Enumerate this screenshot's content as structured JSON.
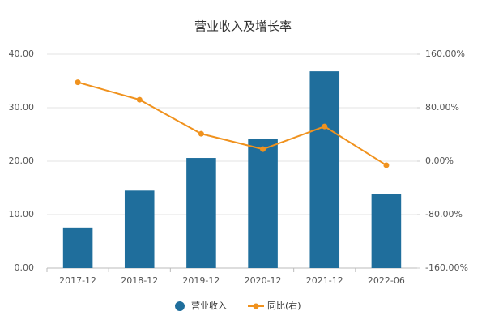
{
  "chart_data": {
    "type": "combo",
    "title": "营业收入及增长率",
    "categories": [
      "2017-12",
      "2018-12",
      "2019-12",
      "2020-12",
      "2021-12",
      "2022-06"
    ],
    "series": [
      {
        "name": "营业收入",
        "type": "bar",
        "color": "#1f6e9c",
        "values": [
          7.6,
          14.5,
          20.6,
          24.2,
          36.8,
          13.8
        ]
      },
      {
        "name": "同比(右)",
        "type": "line",
        "axis": "y2",
        "color": "#f0921e",
        "values": [
          118,
          92,
          41,
          18,
          52,
          -6
        ]
      }
    ],
    "ylim": [
      0,
      40
    ],
    "yticks": [
      {
        "value": 0,
        "label": "0.00"
      },
      {
        "value": 10,
        "label": "10.00"
      },
      {
        "value": 20,
        "label": "20.00"
      },
      {
        "value": 30,
        "label": "30.00"
      },
      {
        "value": 40,
        "label": "40.00"
      }
    ],
    "y2lim": [
      -160,
      160
    ],
    "y2ticks": [
      {
        "value": -160,
        "label": "-160.00%"
      },
      {
        "value": -80,
        "label": "-80.00%"
      },
      {
        "value": 0,
        "label": "0.00%"
      },
      {
        "value": 80,
        "label": "80.00%"
      },
      {
        "value": 160,
        "label": "160.00%"
      }
    ],
    "grid": true,
    "legend": "bottom"
  }
}
